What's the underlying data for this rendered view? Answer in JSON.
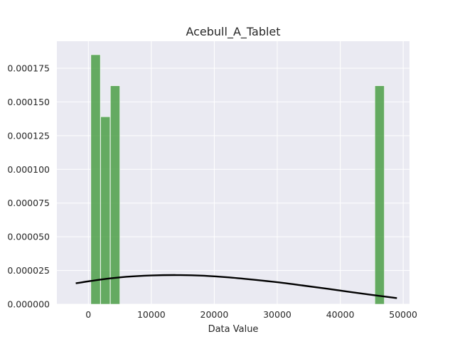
{
  "chart_data": {
    "type": "bar",
    "title": "Acebull_A_Tablet",
    "xlabel": "Data Value",
    "ylabel": "",
    "xlim": [
      -5000,
      51000
    ],
    "ylim": [
      0,
      0.000195
    ],
    "grid": true,
    "bar_color": "#4c9f48",
    "curve_color": "#000000",
    "background_color": "#eaeaf2",
    "x_ticks": [
      0,
      10000,
      20000,
      30000,
      40000,
      50000
    ],
    "x_tick_labels": [
      "0",
      "10000",
      "20000",
      "30000",
      "40000",
      "50000"
    ],
    "y_ticks": [
      0,
      2.5e-05,
      5e-05,
      7.5e-05,
      0.0001,
      0.000125,
      0.00015,
      0.000175
    ],
    "y_tick_labels": [
      "0.000000",
      "0.000025",
      "0.000050",
      "0.000075",
      "0.000100",
      "0.000125",
      "0.000150",
      "0.000175"
    ],
    "bars": [
      {
        "x0": 400,
        "x1": 1900,
        "value": 0.000185
      },
      {
        "x0": 1950,
        "x1": 3450,
        "value": 0.000139
      },
      {
        "x0": 3500,
        "x1": 5000,
        "value": 0.000162
      },
      {
        "x0": 45500,
        "x1": 47000,
        "value": 0.000162
      }
    ],
    "kde_curve": {
      "x": [
        -2000,
        2000,
        6000,
        10000,
        14000,
        18000,
        22000,
        26000,
        30000,
        34000,
        38000,
        42000,
        46000,
        49000
      ],
      "y": [
        1.55e-05,
        1.83e-05,
        2.03e-05,
        2.13e-05,
        2.16e-05,
        2.12e-05,
        2e-05,
        1.83e-05,
        1.63e-05,
        1.39e-05,
        1.14e-05,
        8.8e-06,
        6.3e-06,
        4.5e-06
      ]
    }
  }
}
